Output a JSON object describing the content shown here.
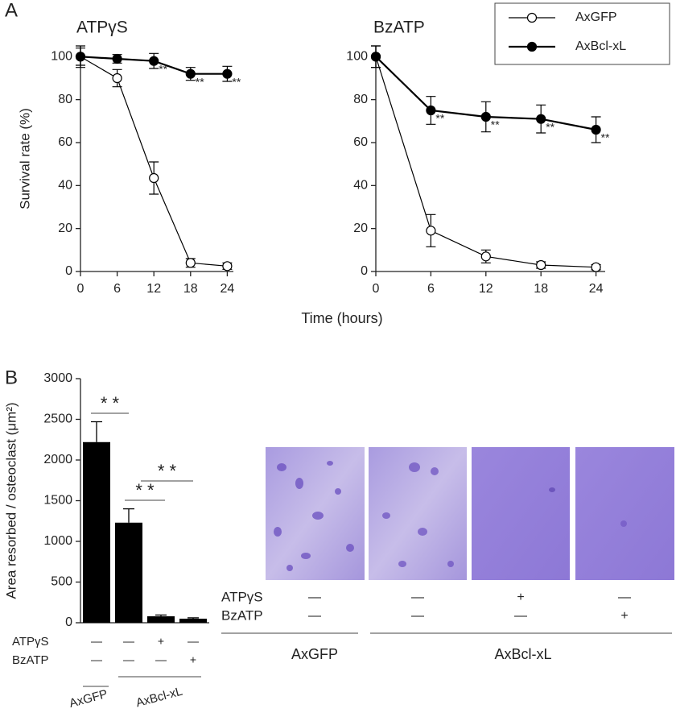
{
  "figure": {
    "panels": [
      "A",
      "B"
    ],
    "xlabel": "Time (hours)"
  },
  "chart_data": [
    {
      "type": "line",
      "title": "ATPγS",
      "ylabel": "Survival rate (%)",
      "x": [
        0,
        6,
        12,
        18,
        24
      ],
      "xlim": [
        0,
        25
      ],
      "xticks": [
        0,
        6,
        12,
        18,
        24
      ],
      "ylim": [
        0,
        105
      ],
      "yticks": [
        0,
        20,
        40,
        60,
        80,
        100
      ],
      "series": [
        {
          "name": "AxGFP",
          "color": "#000000",
          "marker_fill": "#ffffff",
          "values": [
            100,
            90,
            43.5,
            4,
            2.5
          ],
          "errors": [
            5,
            4,
            7.5,
            2,
            1.5
          ]
        },
        {
          "name": "AxBcl-xL",
          "color": "#000000",
          "marker_fill": "#000000",
          "values": [
            100,
            99,
            98,
            92,
            92
          ],
          "errors": [
            4,
            2,
            3.5,
            3,
            3.5
          ],
          "annotations": [
            null,
            null,
            "**",
            "**",
            "**"
          ]
        }
      ]
    },
    {
      "type": "line",
      "title": "BzATP",
      "legend": "top-right",
      "x": [
        0,
        6,
        12,
        18,
        24
      ],
      "xlim": [
        0,
        25
      ],
      "xticks": [
        0,
        6,
        12,
        18,
        24
      ],
      "ylim": [
        0,
        105
      ],
      "yticks": [
        0,
        20,
        40,
        60,
        80,
        100
      ],
      "series": [
        {
          "name": "AxGFP",
          "color": "#000000",
          "marker_fill": "#ffffff",
          "values": [
            100,
            19,
            7,
            3,
            2
          ],
          "errors": [
            5,
            7.5,
            3,
            1.5,
            1.2
          ]
        },
        {
          "name": "AxBcl-xL",
          "color": "#000000",
          "marker_fill": "#000000",
          "values": [
            100,
            75,
            72,
            71,
            66
          ],
          "errors": [
            5,
            6.5,
            7,
            6.5,
            6
          ],
          "annotations": [
            null,
            "**",
            "**",
            "**",
            "**"
          ]
        }
      ]
    },
    {
      "type": "bar",
      "ylabel": "Area resorbed / osteoclast (μm²)",
      "categories": [
        null,
        null,
        null,
        null
      ],
      "values": [
        2220,
        1230,
        80,
        50
      ],
      "errors": [
        250,
        170,
        15,
        10
      ],
      "color": "#000000",
      "ylim": [
        0,
        3000
      ],
      "yticks": [
        0,
        500,
        1000,
        1500,
        2000,
        2500,
        3000
      ],
      "significance": [
        "* *",
        "* *",
        "* *"
      ],
      "treatments": [
        {
          "label": "ATPγS",
          "cells": [
            "—",
            "—",
            "+",
            "—"
          ]
        },
        {
          "label": "BzATP",
          "cells": [
            "—",
            "—",
            "—",
            "+"
          ]
        }
      ],
      "groups": [
        "AxGFP",
        "AxBcl-xL"
      ]
    }
  ],
  "micrographs": {
    "treatments": [
      {
        "label": "ATPγS",
        "cells": [
          "—",
          "—",
          "+",
          "—"
        ]
      },
      {
        "label": "BzATP",
        "cells": [
          "—",
          "—",
          "—",
          "+"
        ]
      }
    ],
    "groups": [
      "AxGFP",
      "AxBcl-xL"
    ]
  }
}
